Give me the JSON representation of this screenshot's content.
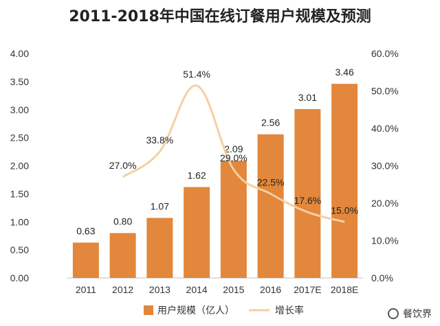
{
  "chart_data": {
    "type": "bar",
    "title": "2011-2018年中国在线订餐用户规模及预测",
    "categories": [
      "2011",
      "2012",
      "2013",
      "2014",
      "2015",
      "2016",
      "2017E",
      "2018E"
    ],
    "series": [
      {
        "name": "用户规模（亿人）",
        "kind": "bar",
        "axis": "left",
        "values": [
          0.63,
          0.8,
          1.07,
          1.62,
          2.09,
          2.56,
          3.01,
          3.46
        ],
        "labels": [
          "0.63",
          "0.80",
          "1.07",
          "1.62",
          "2.09",
          "2.56",
          "3.01",
          "3.46"
        ]
      },
      {
        "name": "增长率",
        "kind": "line",
        "axis": "right",
        "values": [
          null,
          27.0,
          33.8,
          51.4,
          29.0,
          22.5,
          17.6,
          15.0
        ],
        "labels": [
          "",
          "27.0%",
          "33.8%",
          "51.4%",
          "29.0%",
          "22.5%",
          "17.6%",
          "15.0%"
        ]
      }
    ],
    "y_left": {
      "range": [
        0,
        4
      ],
      "ticks": [
        "0.00",
        "0.50",
        "1.00",
        "1.50",
        "2.00",
        "2.50",
        "3.00",
        "3.50",
        "4.00"
      ]
    },
    "y_right": {
      "range": [
        0,
        60
      ],
      "ticks": [
        "0.0%",
        "10.0%",
        "20.0%",
        "30.0%",
        "40.0%",
        "50.0%",
        "60.0%"
      ]
    },
    "colors": {
      "bar": "#E2873B",
      "line": "#F5CFA3"
    },
    "legend_placement": "bottom-center"
  },
  "watermark": {
    "brand": "餐饮界"
  }
}
